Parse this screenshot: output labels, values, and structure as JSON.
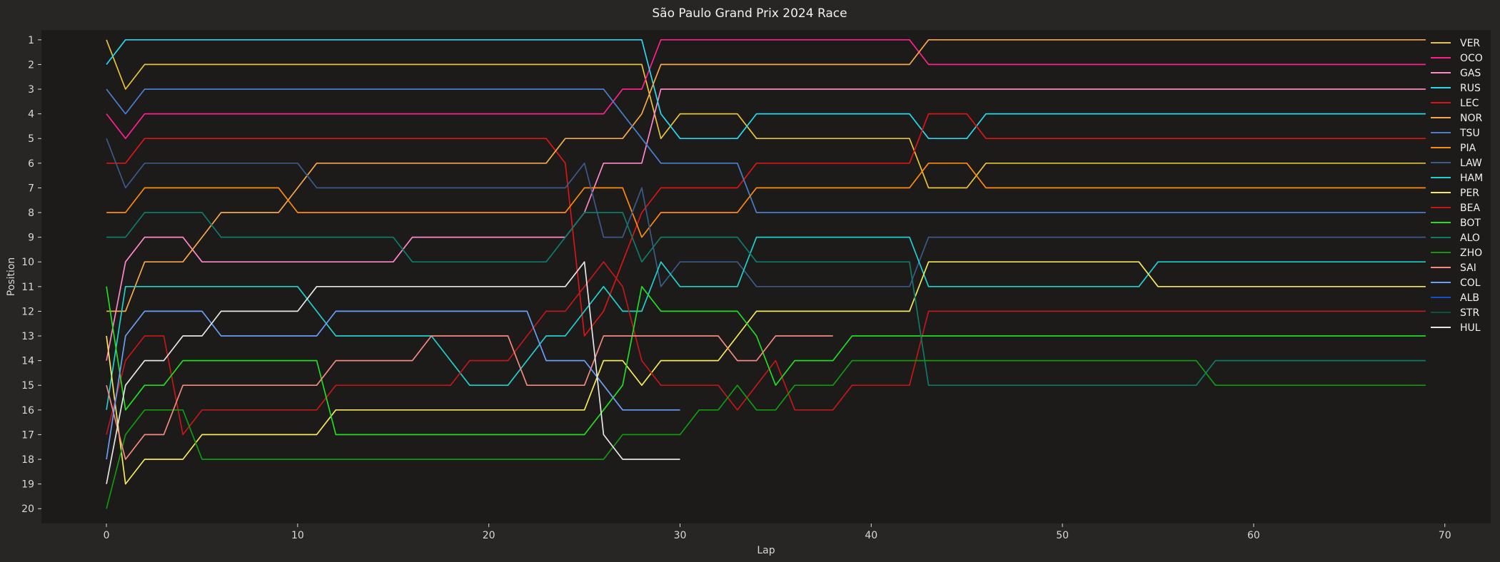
{
  "chart_data": {
    "type": "line",
    "title": "São Paulo Grand Prix 2024  Race",
    "xlabel": "Lap",
    "ylabel": "Position",
    "xlim": [
      -3.4,
      72.4
    ],
    "ylim": [
      20.6,
      0.6
    ],
    "x_ticks": [
      0,
      10,
      20,
      30,
      40,
      50,
      60,
      70
    ],
    "y_ticks": [
      1,
      2,
      3,
      4,
      5,
      6,
      7,
      8,
      9,
      10,
      11,
      12,
      13,
      14,
      15,
      16,
      17,
      18,
      19,
      20
    ],
    "grid": false,
    "legend_position": "top-right",
    "series": [
      {
        "name": "VER",
        "color": "#e8c33a",
        "points": [
          [
            0,
            1
          ],
          [
            1,
            3
          ],
          [
            2,
            2
          ],
          [
            28,
            2
          ],
          [
            29,
            5
          ],
          [
            30,
            4
          ],
          [
            33,
            4
          ],
          [
            34,
            5
          ],
          [
            42,
            5
          ],
          [
            43,
            7
          ],
          [
            45,
            7
          ],
          [
            46,
            6
          ],
          [
            69,
            6
          ]
        ]
      },
      {
        "name": "OCO",
        "color": "#ff1f8e",
        "points": [
          [
            0,
            4
          ],
          [
            1,
            5
          ],
          [
            2,
            4
          ],
          [
            26,
            4
          ],
          [
            27,
            3
          ],
          [
            28,
            3
          ],
          [
            29,
            1
          ],
          [
            42,
            1
          ],
          [
            43,
            2
          ],
          [
            69,
            2
          ]
        ]
      },
      {
        "name": "GAS",
        "color": "#ff88c8",
        "points": [
          [
            0,
            14
          ],
          [
            1,
            10
          ],
          [
            2,
            9
          ],
          [
            4,
            9
          ],
          [
            5,
            10
          ],
          [
            15,
            10
          ],
          [
            16,
            9
          ],
          [
            24,
            9
          ],
          [
            25,
            8
          ],
          [
            26,
            6
          ],
          [
            28,
            6
          ],
          [
            29,
            3
          ],
          [
            69,
            3
          ]
        ]
      },
      {
        "name": "RUS",
        "color": "#28d9ee",
        "points": [
          [
            0,
            2
          ],
          [
            1,
            1
          ],
          [
            28,
            1
          ],
          [
            29,
            4
          ],
          [
            30,
            5
          ],
          [
            33,
            5
          ],
          [
            34,
            4
          ],
          [
            42,
            4
          ],
          [
            43,
            5
          ],
          [
            45,
            5
          ],
          [
            46,
            4
          ],
          [
            69,
            4
          ]
        ]
      },
      {
        "name": "LEC",
        "color": "#d81616",
        "points": [
          [
            0,
            6
          ],
          [
            1,
            6
          ],
          [
            2,
            5
          ],
          [
            23,
            5
          ],
          [
            24,
            6
          ],
          [
            25,
            13
          ],
          [
            26,
            12
          ],
          [
            27,
            10
          ],
          [
            28,
            8
          ],
          [
            29,
            7
          ],
          [
            33,
            7
          ],
          [
            34,
            6
          ],
          [
            42,
            6
          ],
          [
            43,
            4
          ],
          [
            45,
            4
          ],
          [
            46,
            5
          ],
          [
            69,
            5
          ]
        ]
      },
      {
        "name": "NOR",
        "color": "#f7a84a",
        "points": [
          [
            0,
            12
          ],
          [
            1,
            12
          ],
          [
            2,
            10
          ],
          [
            4,
            10
          ],
          [
            5,
            9
          ],
          [
            6,
            8
          ],
          [
            9,
            8
          ],
          [
            10,
            7
          ],
          [
            11,
            6
          ],
          [
            23,
            6
          ],
          [
            24,
            5
          ],
          [
            26,
            5
          ],
          [
            27,
            5
          ],
          [
            28,
            4
          ],
          [
            29,
            2
          ],
          [
            42,
            2
          ],
          [
            43,
            1
          ],
          [
            69,
            1
          ]
        ]
      },
      {
        "name": "TSU",
        "color": "#4a7fcf",
        "points": [
          [
            0,
            3
          ],
          [
            1,
            4
          ],
          [
            2,
            3
          ],
          [
            26,
            3
          ],
          [
            27,
            4
          ],
          [
            28,
            5
          ],
          [
            29,
            6
          ],
          [
            33,
            6
          ],
          [
            34,
            8
          ],
          [
            69,
            8
          ]
        ]
      },
      {
        "name": "PIA",
        "color": "#ff8a10",
        "points": [
          [
            0,
            8
          ],
          [
            1,
            8
          ],
          [
            2,
            7
          ],
          [
            9,
            7
          ],
          [
            10,
            8
          ],
          [
            24,
            8
          ],
          [
            25,
            7
          ],
          [
            27,
            7
          ],
          [
            28,
            9
          ],
          [
            29,
            8
          ],
          [
            32,
            8
          ],
          [
            33,
            8
          ],
          [
            34,
            7
          ],
          [
            42,
            7
          ],
          [
            43,
            6
          ],
          [
            45,
            6
          ],
          [
            46,
            7
          ],
          [
            69,
            7
          ]
        ]
      },
      {
        "name": "LAW",
        "color": "#3a5a88",
        "points": [
          [
            0,
            5
          ],
          [
            1,
            7
          ],
          [
            2,
            6
          ],
          [
            10,
            6
          ],
          [
            11,
            7
          ],
          [
            24,
            7
          ],
          [
            25,
            6
          ],
          [
            26,
            9
          ],
          [
            27,
            9
          ],
          [
            28,
            7
          ],
          [
            29,
            11
          ],
          [
            30,
            10
          ],
          [
            33,
            10
          ],
          [
            34,
            11
          ],
          [
            42,
            11
          ],
          [
            43,
            9
          ],
          [
            69,
            9
          ]
        ]
      },
      {
        "name": "HAM",
        "color": "#20d0cc",
        "points": [
          [
            0,
            16
          ],
          [
            1,
            11
          ],
          [
            10,
            11
          ],
          [
            11,
            12
          ],
          [
            12,
            13
          ],
          [
            17,
            13
          ],
          [
            18,
            14
          ],
          [
            19,
            15
          ],
          [
            21,
            15
          ],
          [
            22,
            14
          ],
          [
            23,
            13
          ],
          [
            24,
            13
          ],
          [
            25,
            12
          ],
          [
            26,
            11
          ],
          [
            27,
            12
          ],
          [
            28,
            12
          ],
          [
            29,
            10
          ],
          [
            30,
            11
          ],
          [
            33,
            11
          ],
          [
            34,
            9
          ],
          [
            42,
            9
          ],
          [
            43,
            11
          ],
          [
            54,
            11
          ],
          [
            55,
            10
          ],
          [
            69,
            10
          ]
        ]
      },
      {
        "name": "PER",
        "color": "#f6e85a",
        "points": [
          [
            0,
            13
          ],
          [
            1,
            19
          ],
          [
            2,
            18
          ],
          [
            4,
            18
          ],
          [
            5,
            17
          ],
          [
            11,
            17
          ],
          [
            12,
            16
          ],
          [
            25,
            16
          ],
          [
            26,
            14
          ],
          [
            27,
            14
          ],
          [
            28,
            15
          ],
          [
            29,
            14
          ],
          [
            32,
            14
          ],
          [
            33,
            13
          ],
          [
            34,
            12
          ],
          [
            42,
            12
          ],
          [
            43,
            10
          ],
          [
            54,
            10
          ],
          [
            55,
            11
          ],
          [
            69,
            11
          ]
        ]
      },
      {
        "name": "BEA",
        "color": "#c01818",
        "points": [
          [
            0,
            17
          ],
          [
            1,
            14
          ],
          [
            2,
            13
          ],
          [
            3,
            13
          ],
          [
            4,
            17
          ],
          [
            5,
            16
          ],
          [
            11,
            16
          ],
          [
            12,
            15
          ],
          [
            18,
            15
          ],
          [
            19,
            14
          ],
          [
            21,
            14
          ],
          [
            22,
            13
          ],
          [
            23,
            12
          ],
          [
            24,
            12
          ],
          [
            25,
            11
          ],
          [
            26,
            10
          ],
          [
            27,
            11
          ],
          [
            28,
            14
          ],
          [
            29,
            15
          ],
          [
            32,
            15
          ],
          [
            33,
            16
          ],
          [
            34,
            15
          ],
          [
            35,
            14
          ],
          [
            36,
            16
          ],
          [
            38,
            16
          ],
          [
            39,
            15
          ],
          [
            42,
            15
          ],
          [
            43,
            12
          ],
          [
            69,
            12
          ]
        ]
      },
      {
        "name": "BOT",
        "color": "#22dd22",
        "points": [
          [
            0,
            11
          ],
          [
            1,
            16
          ],
          [
            2,
            15
          ],
          [
            3,
            15
          ],
          [
            4,
            14
          ],
          [
            11,
            14
          ],
          [
            12,
            17
          ],
          [
            25,
            17
          ],
          [
            26,
            16
          ],
          [
            27,
            15
          ],
          [
            28,
            11
          ],
          [
            29,
            12
          ],
          [
            33,
            12
          ],
          [
            34,
            13
          ],
          [
            35,
            15
          ],
          [
            36,
            14
          ],
          [
            38,
            14
          ],
          [
            39,
            13
          ],
          [
            69,
            13
          ]
        ]
      },
      {
        "name": "ALO",
        "color": "#0f7a6a",
        "points": [
          [
            0,
            9
          ],
          [
            1,
            9
          ],
          [
            2,
            8
          ],
          [
            5,
            8
          ],
          [
            6,
            9
          ],
          [
            15,
            9
          ],
          [
            16,
            10
          ],
          [
            23,
            10
          ],
          [
            24,
            9
          ],
          [
            25,
            8
          ],
          [
            27,
            8
          ],
          [
            28,
            10
          ],
          [
            29,
            9
          ],
          [
            33,
            9
          ],
          [
            34,
            10
          ],
          [
            42,
            10
          ],
          [
            43,
            15
          ],
          [
            57,
            15
          ],
          [
            58,
            14
          ],
          [
            69,
            14
          ]
        ]
      },
      {
        "name": "ZHO",
        "color": "#119911",
        "points": [
          [
            0,
            20
          ],
          [
            1,
            17
          ],
          [
            2,
            16
          ],
          [
            4,
            16
          ],
          [
            5,
            18
          ],
          [
            26,
            18
          ],
          [
            27,
            17
          ],
          [
            30,
            17
          ],
          [
            31,
            16
          ],
          [
            32,
            16
          ],
          [
            33,
            15
          ],
          [
            34,
            16
          ],
          [
            35,
            16
          ],
          [
            36,
            15
          ],
          [
            38,
            15
          ],
          [
            39,
            14
          ],
          [
            57,
            14
          ],
          [
            58,
            15
          ],
          [
            69,
            15
          ]
        ]
      },
      {
        "name": "SAI",
        "color": "#f48a80",
        "points": [
          [
            0,
            15
          ],
          [
            1,
            18
          ],
          [
            2,
            17
          ],
          [
            3,
            17
          ],
          [
            4,
            15
          ],
          [
            11,
            15
          ],
          [
            12,
            14
          ],
          [
            16,
            14
          ],
          [
            17,
            13
          ],
          [
            21,
            13
          ],
          [
            22,
            15
          ],
          [
            25,
            15
          ],
          [
            26,
            13
          ],
          [
            32,
            13
          ],
          [
            33,
            14
          ],
          [
            34,
            14
          ],
          [
            35,
            13
          ],
          [
            38,
            13
          ]
        ]
      },
      {
        "name": "COL",
        "color": "#6a9ef8",
        "points": [
          [
            0,
            18
          ],
          [
            1,
            13
          ],
          [
            2,
            12
          ],
          [
            5,
            12
          ],
          [
            6,
            13
          ],
          [
            11,
            13
          ],
          [
            12,
            12
          ],
          [
            22,
            12
          ],
          [
            23,
            14
          ],
          [
            25,
            14
          ],
          [
            26,
            15
          ],
          [
            27,
            16
          ],
          [
            30,
            16
          ]
        ]
      },
      {
        "name": "ALB",
        "color": "#1450c8",
        "points": []
      },
      {
        "name": "STR",
        "color": "#0e4f44",
        "points": []
      },
      {
        "name": "HUL",
        "color": "#e6e6e6",
        "points": [
          [
            0,
            19
          ],
          [
            1,
            15
          ],
          [
            2,
            14
          ],
          [
            3,
            14
          ],
          [
            4,
            13
          ],
          [
            5,
            13
          ],
          [
            6,
            12
          ],
          [
            10,
            12
          ],
          [
            11,
            11
          ],
          [
            24,
            11
          ],
          [
            25,
            10
          ],
          [
            26,
            17
          ],
          [
            27,
            18
          ],
          [
            30,
            18
          ]
        ]
      }
    ]
  }
}
